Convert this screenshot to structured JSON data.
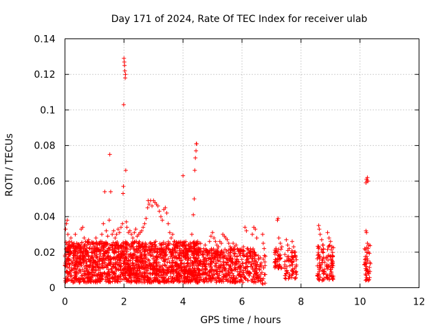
{
  "chart_data": {
    "type": "scatter",
    "title": "Day 171 of 2024, Rate Of TEC Index for receiver ulab",
    "xlabel": "GPS time / hours",
    "ylabel": "ROTI / TECUs",
    "xlim": [
      0,
      12
    ],
    "ylim": [
      0,
      0.14
    ],
    "xticks": [
      0,
      2,
      4,
      6,
      8,
      10,
      12
    ],
    "xtick_labels": [
      "0",
      "2",
      "4",
      "6",
      "8",
      "10",
      "12"
    ],
    "yticks": [
      0,
      0.02,
      0.04,
      0.06,
      0.08,
      0.1,
      0.12,
      0.14
    ],
    "ytick_labels": [
      "0",
      "0.02",
      "0.04",
      "0.06",
      "0.08",
      "0.1",
      "0.12",
      "0.14"
    ],
    "grid": true,
    "marker": "+",
    "color": "#ff0000",
    "series": [
      {
        "name": "ROTI",
        "points": [
          [
            0.02,
            0.033
          ],
          [
            0.05,
            0.036
          ],
          [
            0.08,
            0.038
          ],
          [
            0.1,
            0.03
          ],
          [
            0.15,
            0.026
          ],
          [
            0.2,
            0.028
          ],
          [
            0.25,
            0.024
          ],
          [
            0.3,
            0.022
          ],
          [
            0.35,
            0.03
          ],
          [
            0.4,
            0.025
          ],
          [
            0.45,
            0.02
          ],
          [
            0.5,
            0.022
          ],
          [
            0.55,
            0.033
          ],
          [
            0.6,
            0.034
          ],
          [
            0.65,
            0.028
          ],
          [
            0.7,
            0.026
          ],
          [
            0.75,
            0.024
          ],
          [
            0.8,
            0.027
          ],
          [
            0.85,
            0.022
          ],
          [
            0.9,
            0.02
          ],
          [
            0.95,
            0.025
          ],
          [
            1.0,
            0.021
          ],
          [
            1.05,
            0.028
          ],
          [
            1.1,
            0.024
          ],
          [
            1.15,
            0.021
          ],
          [
            1.2,
            0.026
          ],
          [
            1.25,
            0.03
          ],
          [
            1.3,
            0.036
          ],
          [
            1.35,
            0.054
          ],
          [
            1.4,
            0.032
          ],
          [
            1.45,
            0.029
          ],
          [
            1.5,
            0.038
          ],
          [
            1.52,
            0.075
          ],
          [
            1.55,
            0.054
          ],
          [
            1.6,
            0.03
          ],
          [
            1.65,
            0.032
          ],
          [
            1.7,
            0.028
          ],
          [
            1.75,
            0.03
          ],
          [
            1.8,
            0.033
          ],
          [
            1.85,
            0.031
          ],
          [
            1.9,
            0.034
          ],
          [
            1.95,
            0.036
          ],
          [
            1.97,
            0.053
          ],
          [
            1.98,
            0.057
          ],
          [
            1.99,
            0.103
          ],
          [
            2.0,
            0.129
          ],
          [
            2.01,
            0.127
          ],
          [
            2.02,
            0.125
          ],
          [
            2.03,
            0.122
          ],
          [
            2.04,
            0.118
          ],
          [
            2.05,
            0.12
          ],
          [
            2.06,
            0.066
          ],
          [
            2.08,
            0.037
          ],
          [
            2.1,
            0.034
          ],
          [
            2.15,
            0.031
          ],
          [
            2.2,
            0.032
          ],
          [
            2.25,
            0.03
          ],
          [
            2.3,
            0.028
          ],
          [
            2.35,
            0.031
          ],
          [
            2.4,
            0.033
          ],
          [
            2.45,
            0.029
          ],
          [
            2.5,
            0.03
          ],
          [
            2.55,
            0.031
          ],
          [
            2.6,
            0.032
          ],
          [
            2.65,
            0.034
          ],
          [
            2.7,
            0.036
          ],
          [
            2.75,
            0.039
          ],
          [
            2.8,
            0.045
          ],
          [
            2.82,
            0.049
          ],
          [
            2.85,
            0.047
          ],
          [
            2.9,
            0.049
          ],
          [
            2.95,
            0.046
          ],
          [
            3.0,
            0.049
          ],
          [
            3.05,
            0.048
          ],
          [
            3.1,
            0.047
          ],
          [
            3.15,
            0.046
          ],
          [
            3.2,
            0.043
          ],
          [
            3.25,
            0.04
          ],
          [
            3.3,
            0.038
          ],
          [
            3.35,
            0.044
          ],
          [
            3.4,
            0.045
          ],
          [
            3.45,
            0.042
          ],
          [
            3.5,
            0.036
          ],
          [
            3.55,
            0.031
          ],
          [
            3.6,
            0.028
          ],
          [
            3.65,
            0.03
          ],
          [
            3.7,
            0.026
          ],
          [
            3.75,
            0.024
          ],
          [
            3.8,
            0.023
          ],
          [
            3.85,
            0.025
          ],
          [
            3.9,
            0.022
          ],
          [
            3.95,
            0.021
          ],
          [
            4.0,
            0.063
          ],
          [
            4.05,
            0.024
          ],
          [
            4.1,
            0.022
          ],
          [
            4.15,
            0.02
          ],
          [
            4.2,
            0.021
          ],
          [
            4.25,
            0.023
          ],
          [
            4.3,
            0.03
          ],
          [
            4.35,
            0.041
          ],
          [
            4.38,
            0.05
          ],
          [
            4.4,
            0.066
          ],
          [
            4.42,
            0.073
          ],
          [
            4.44,
            0.077
          ],
          [
            4.45,
            0.081
          ],
          [
            4.46,
            0.081
          ],
          [
            4.5,
            0.026
          ],
          [
            4.55,
            0.022
          ],
          [
            4.6,
            0.02
          ],
          [
            4.65,
            0.019
          ],
          [
            4.7,
            0.022
          ],
          [
            4.75,
            0.024
          ],
          [
            4.8,
            0.021
          ],
          [
            4.85,
            0.02
          ],
          [
            4.9,
            0.026
          ],
          [
            4.95,
            0.029
          ],
          [
            5.0,
            0.031
          ],
          [
            5.05,
            0.028
          ],
          [
            5.1,
            0.026
          ],
          [
            5.15,
            0.024
          ],
          [
            5.2,
            0.023
          ],
          [
            5.25,
            0.026
          ],
          [
            5.3,
            0.025
          ],
          [
            5.35,
            0.03
          ],
          [
            5.4,
            0.029
          ],
          [
            5.45,
            0.028
          ],
          [
            5.5,
            0.027
          ],
          [
            5.55,
            0.025
          ],
          [
            5.6,
            0.023
          ],
          [
            5.65,
            0.022
          ],
          [
            5.7,
            0.025
          ],
          [
            5.75,
            0.023
          ],
          [
            5.8,
            0.024
          ],
          [
            5.85,
            0.022
          ],
          [
            5.9,
            0.021
          ],
          [
            5.95,
            0.02
          ],
          [
            6.0,
            0.021
          ],
          [
            6.05,
            0.023
          ],
          [
            6.1,
            0.034
          ],
          [
            6.15,
            0.032
          ],
          [
            6.2,
            0.022
          ],
          [
            6.25,
            0.02
          ],
          [
            6.3,
            0.019
          ],
          [
            6.35,
            0.03
          ],
          [
            6.4,
            0.034
          ],
          [
            6.45,
            0.033
          ],
          [
            6.5,
            0.028
          ],
          [
            6.7,
            0.03
          ],
          [
            6.72,
            0.025
          ],
          [
            6.75,
            0.022
          ],
          [
            7.2,
            0.038
          ],
          [
            7.22,
            0.039
          ],
          [
            7.25,
            0.028
          ],
          [
            7.3,
            0.025
          ],
          [
            7.35,
            0.023
          ],
          [
            7.5,
            0.027
          ],
          [
            7.55,
            0.024
          ],
          [
            7.6,
            0.022
          ],
          [
            7.7,
            0.026
          ],
          [
            7.75,
            0.023
          ],
          [
            7.8,
            0.02
          ],
          [
            8.6,
            0.035
          ],
          [
            8.62,
            0.033
          ],
          [
            8.65,
            0.03
          ],
          [
            8.7,
            0.027
          ],
          [
            8.75,
            0.024
          ],
          [
            8.9,
            0.031
          ],
          [
            8.95,
            0.028
          ],
          [
            9.0,
            0.026
          ],
          [
            9.05,
            0.023
          ],
          [
            10.2,
            0.059
          ],
          [
            10.22,
            0.061
          ],
          [
            10.24,
            0.06
          ],
          [
            10.25,
            0.062
          ],
          [
            10.27,
            0.06
          ],
          [
            10.2,
            0.032
          ],
          [
            10.22,
            0.031
          ],
          [
            10.25,
            0.025
          ],
          [
            10.27,
            0.022
          ],
          [
            10.3,
            0.024
          ]
        ]
      }
    ],
    "dense_band": {
      "note": "dense cluster of low ROTI values",
      "segments": [
        {
          "x_from": 0.0,
          "x_to": 4.6,
          "y_low": 0.003,
          "y_high": 0.026,
          "count": 1700
        },
        {
          "x_from": 4.6,
          "x_to": 6.55,
          "y_low": 0.003,
          "y_high": 0.022,
          "count": 480
        },
        {
          "x_from": 6.55,
          "x_to": 6.8,
          "y_low": 0.002,
          "y_high": 0.019,
          "count": 30
        },
        {
          "x_from": 7.1,
          "x_to": 7.35,
          "y_low": 0.01,
          "y_high": 0.023,
          "count": 45
        },
        {
          "x_from": 7.45,
          "x_to": 7.85,
          "y_low": 0.005,
          "y_high": 0.021,
          "count": 70
        },
        {
          "x_from": 8.55,
          "x_to": 8.8,
          "y_low": 0.004,
          "y_high": 0.024,
          "count": 55
        },
        {
          "x_from": 8.85,
          "x_to": 9.1,
          "y_low": 0.004,
          "y_high": 0.024,
          "count": 60
        },
        {
          "x_from": 10.15,
          "x_to": 10.35,
          "y_low": 0.004,
          "y_high": 0.024,
          "count": 45
        }
      ]
    }
  }
}
